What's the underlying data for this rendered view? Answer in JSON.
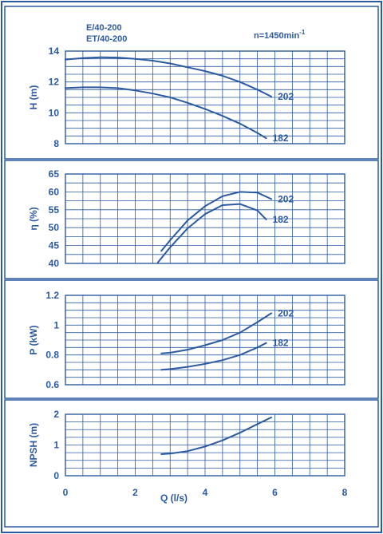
{
  "header": {
    "model_line1": "E/40-200",
    "model_line2": "ET/40-200",
    "speed_prefix": "n=1450min",
    "speed_exp": "-1"
  },
  "colors": {
    "frame": "#2c5aa0",
    "panel_bg": "#ffffff",
    "grid": "#2c5aa0",
    "curve": "#2c5aa0",
    "text": "#2c5aa0"
  },
  "x_axis": {
    "label": "Q (l/s)",
    "range": [
      0,
      8
    ],
    "ticks": [
      "0",
      "2",
      "4",
      "6",
      "8"
    ]
  },
  "chart_data": [
    {
      "type": "line",
      "ylabel": "H (m)",
      "xlim": [
        0,
        8
      ],
      "ylim": [
        8,
        14
      ],
      "yticks": [
        "14",
        "12",
        "10",
        "8"
      ],
      "grid": true,
      "series": [
        {
          "name": "202",
          "x": [
            0,
            0.5,
            1,
            1.5,
            2,
            2.5,
            3,
            3.5,
            4,
            4.5,
            5,
            5.5,
            5.9
          ],
          "y": [
            13.45,
            13.55,
            13.6,
            13.58,
            13.5,
            13.38,
            13.2,
            12.95,
            12.7,
            12.4,
            12.0,
            11.5,
            11.05
          ]
        },
        {
          "name": "182",
          "x": [
            0,
            0.5,
            1,
            1.5,
            2,
            2.5,
            3,
            3.5,
            4,
            4.5,
            5,
            5.5,
            5.75
          ],
          "y": [
            11.6,
            11.65,
            11.65,
            11.6,
            11.45,
            11.25,
            11.0,
            10.65,
            10.25,
            9.8,
            9.3,
            8.7,
            8.35
          ]
        }
      ]
    },
    {
      "type": "line",
      "ylabel": "η (%)",
      "xlim": [
        0,
        8
      ],
      "ylim": [
        40,
        65
      ],
      "yticks": [
        "65",
        "60",
        "55",
        "50",
        "45",
        "40"
      ],
      "grid": true,
      "series": [
        {
          "name": "202",
          "x": [
            2.75,
            3,
            3.5,
            4,
            4.5,
            5,
            5.5,
            5.9
          ],
          "y": [
            43.5,
            46.5,
            52,
            56,
            58.8,
            60,
            59.8,
            58
          ]
        },
        {
          "name": "182",
          "x": [
            2.65,
            3,
            3.5,
            4,
            4.5,
            5,
            5.5,
            5.75
          ],
          "y": [
            40.3,
            44.5,
            49.8,
            53.8,
            56.3,
            56.6,
            54.8,
            52.3
          ]
        }
      ]
    },
    {
      "type": "line",
      "ylabel": "P (kW)",
      "xlim": [
        0,
        8
      ],
      "ylim": [
        0.6,
        1.2
      ],
      "yticks": [
        "1.2",
        "1",
        "0.8",
        "0.6"
      ],
      "grid": true,
      "series": [
        {
          "name": "202",
          "x": [
            2.75,
            3,
            3.5,
            4,
            4.5,
            5,
            5.5,
            5.9
          ],
          "y": [
            0.81,
            0.815,
            0.835,
            0.865,
            0.9,
            0.95,
            1.02,
            1.08
          ]
        },
        {
          "name": "182",
          "x": [
            2.75,
            3,
            3.5,
            4,
            4.5,
            5,
            5.5,
            5.75
          ],
          "y": [
            0.7,
            0.705,
            0.72,
            0.74,
            0.765,
            0.8,
            0.85,
            0.88
          ]
        }
      ]
    },
    {
      "type": "line",
      "ylabel": "NPSH (m)",
      "xlim": [
        0,
        8
      ],
      "ylim": [
        0,
        2
      ],
      "yticks": [
        "2",
        "1",
        "0"
      ],
      "grid": true,
      "series": [
        {
          "name": "",
          "x": [
            2.75,
            3,
            3.5,
            4,
            4.5,
            5,
            5.5,
            5.9
          ],
          "y": [
            0.7,
            0.72,
            0.8,
            0.95,
            1.15,
            1.4,
            1.68,
            1.9
          ]
        }
      ]
    }
  ]
}
